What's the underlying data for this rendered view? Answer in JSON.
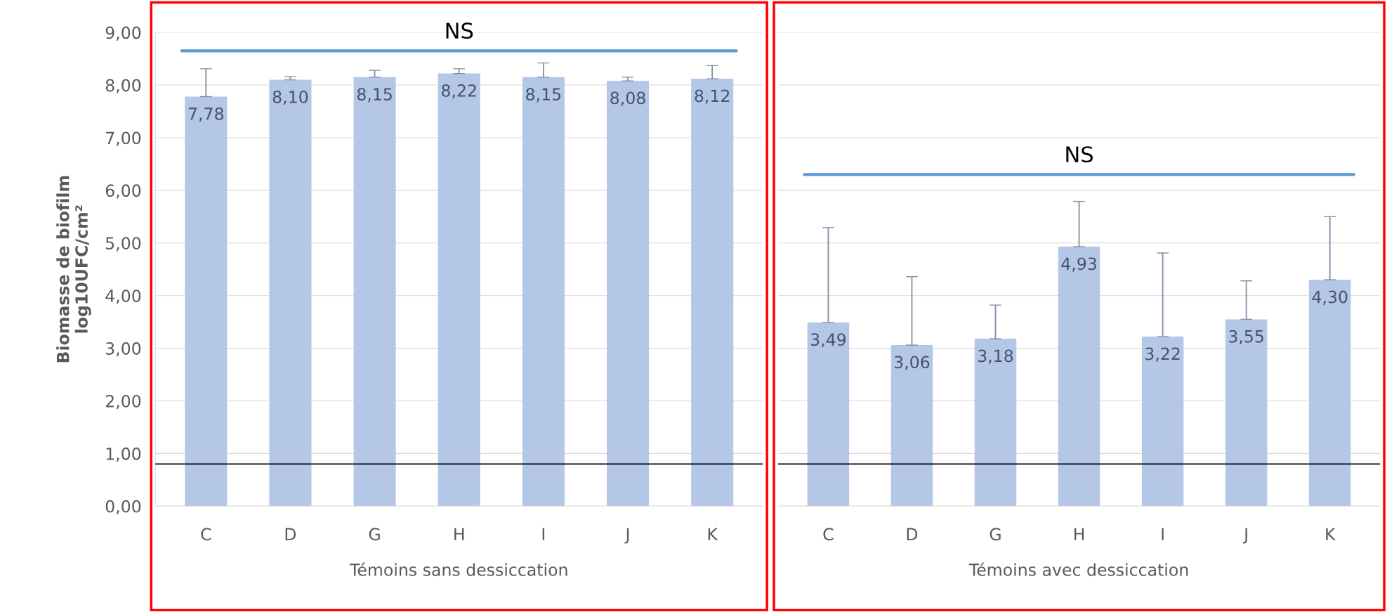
{
  "chart_data": [
    {
      "type": "bar",
      "categories": [
        "C",
        "D",
        "G",
        "H",
        "I",
        "J",
        "K"
      ],
      "xlabel": "Témoins sans dessiccation",
      "ylabel": "Biomasse de biofilm\nlog10UFC/cm²",
      "values": [
        7.78,
        8.1,
        8.15,
        8.22,
        8.15,
        8.08,
        8.12
      ],
      "color": "#b4c7e7",
      "value_labels": [
        "7,78",
        "8,10",
        "8,15",
        "8,22",
        "8,15",
        "8,08",
        "8,12"
      ],
      "errors": [
        [
          7.78,
          8.31
        ],
        [
          8.1,
          8.16
        ],
        [
          8.15,
          8.28
        ],
        [
          8.22,
          8.31
        ],
        [
          8.15,
          8.42
        ],
        [
          8.08,
          8.15
        ],
        [
          8.12,
          8.37
        ]
      ],
      "ylim": [
        0,
        9
      ],
      "yticks": [
        {
          "value": 0,
          "label": "0,00"
        },
        {
          "value": 1,
          "label": "1,00"
        },
        {
          "value": 2,
          "label": "2,00"
        },
        {
          "value": 3,
          "label": "3,00"
        },
        {
          "value": 4,
          "label": "4,00"
        },
        {
          "value": 5,
          "label": "5,00"
        },
        {
          "value": 6,
          "label": "6,00"
        },
        {
          "value": 7,
          "label": "7,00"
        },
        {
          "value": 8,
          "label": "8,00"
        },
        {
          "value": 9,
          "label": "9,00"
        }
      ],
      "ref_lines": [
        {
          "axis": "y",
          "value": 8.65,
          "label": "NS",
          "color": "#5b9bd5"
        },
        {
          "axis": "y",
          "value": 0.8,
          "color": "#000000"
        }
      ],
      "grid": "y"
    },
    {
      "type": "bar",
      "categories": [
        "C",
        "D",
        "G",
        "H",
        "I",
        "J",
        "K"
      ],
      "xlabel": "Témoins avec dessiccation",
      "values": [
        3.49,
        3.06,
        3.18,
        4.93,
        3.22,
        3.55,
        4.3
      ],
      "color": "#b4c7e7",
      "value_labels": [
        "3,49",
        "3,06",
        "3,18",
        "4,93",
        "3,22",
        "3,55",
        "4,30"
      ],
      "errors": [
        [
          3.49,
          5.29
        ],
        [
          3.06,
          4.36
        ],
        [
          3.18,
          3.82
        ],
        [
          4.93,
          5.79
        ],
        [
          3.22,
          4.81
        ],
        [
          3.55,
          4.28
        ],
        [
          4.3,
          5.5
        ]
      ],
      "ylim": [
        0,
        9
      ],
      "yticks": [
        0,
        1,
        2,
        3,
        4,
        5,
        6,
        7,
        8,
        9
      ],
      "tick_labels": "x",
      "ref_lines": [
        {
          "axis": "y",
          "value": 6.3,
          "label": "NS",
          "color": "#5b9bd5"
        },
        {
          "axis": "y",
          "value": 0.8,
          "color": "#000000"
        }
      ],
      "grid": "y"
    }
  ]
}
